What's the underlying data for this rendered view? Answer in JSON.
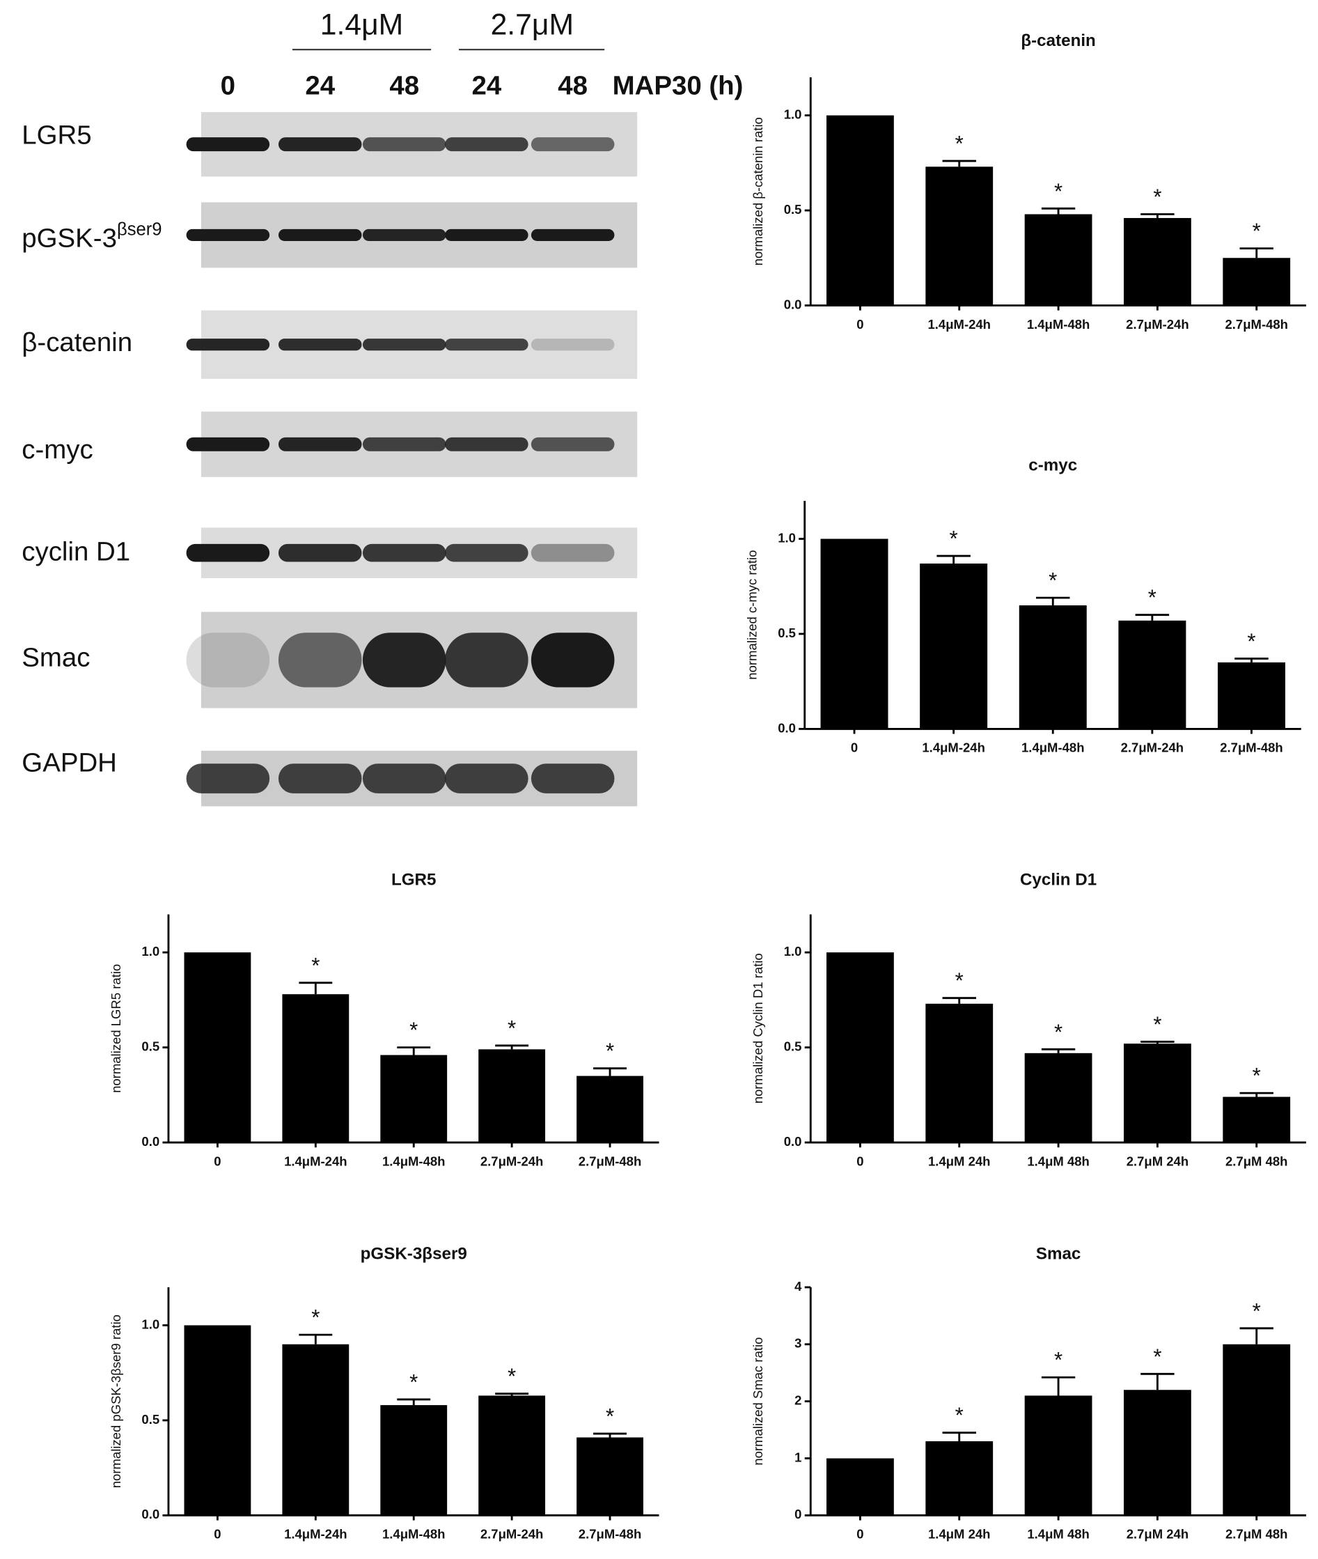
{
  "blot": {
    "concentrations": [
      "1.4μM",
      "2.7μM"
    ],
    "lanes": [
      "0",
      "24",
      "48",
      "24",
      "48"
    ],
    "treatment_label": "MAP30 (h)",
    "proteins": [
      {
        "name": "LGR5"
      },
      {
        "name": "pGSK-3",
        "superscript": "βser9"
      },
      {
        "name": "β-catenin"
      },
      {
        "name": "c-myc"
      },
      {
        "name": "cyclin D1"
      },
      {
        "name": "Smac"
      },
      {
        "name": "GAPDH"
      }
    ]
  },
  "chart_data": [
    {
      "type": "bar",
      "title": "β-catenin",
      "y_label": "normalized β-catenin ratio",
      "categories": [
        "0",
        "1.4μM-24h",
        "1.4μM-48h",
        "2.7μM-24h",
        "2.7μM-48h"
      ],
      "values": [
        1.0,
        0.73,
        0.48,
        0.46,
        0.25
      ],
      "errors": [
        0,
        0.03,
        0.03,
        0.02,
        0.05
      ],
      "significance": [
        null,
        "*",
        "*",
        "*",
        "*"
      ],
      "color": "#000000",
      "ylim": [
        0,
        1.2
      ],
      "yticks": [
        {
          "value": 0,
          "label": "0.0"
        },
        0.5,
        {
          "value": 1,
          "label": "1.0"
        }
      ]
    },
    {
      "type": "bar",
      "title": "c-myc",
      "y_label": "normalized c-myc ratio",
      "categories": [
        "0",
        "1.4μM-24h",
        "1.4μM-48h",
        "2.7μM-24h",
        "2.7μM-48h"
      ],
      "values": [
        1.0,
        0.87,
        0.65,
        0.57,
        0.35
      ],
      "errors": [
        0,
        0.04,
        0.04,
        0.03,
        0.02
      ],
      "significance": [
        null,
        "*",
        "*",
        "*",
        "*"
      ],
      "color": "#000000",
      "ylim": [
        0,
        1.2
      ],
      "yticks": [
        {
          "value": 0,
          "label": "0.0"
        },
        0.5,
        {
          "value": 1,
          "label": "1.0"
        }
      ]
    },
    {
      "type": "bar",
      "title": "LGR5",
      "y_label": "normalized LGR5 ratio",
      "categories": [
        "0",
        "1.4μM-24h",
        "1.4μM-48h",
        "2.7μM-24h",
        "2.7μM-48h"
      ],
      "values": [
        1.0,
        0.78,
        0.46,
        0.49,
        0.35
      ],
      "errors": [
        0,
        0.06,
        0.04,
        0.02,
        0.04
      ],
      "significance": [
        null,
        "*",
        "*",
        "*",
        "*"
      ],
      "color": "#000000",
      "ylim": [
        0,
        1.2
      ],
      "yticks": [
        {
          "value": 0,
          "label": "0.0"
        },
        0.5,
        {
          "value": 1,
          "label": "1.0"
        }
      ]
    },
    {
      "type": "bar",
      "title": "Cyclin D1",
      "y_label": "normalized Cyclin D1 ratio",
      "categories": [
        "0",
        "1.4μM 24h",
        "1.4μM 48h",
        "2.7μM 24h",
        "2.7μM 48h"
      ],
      "values": [
        1.0,
        0.73,
        0.47,
        0.52,
        0.24
      ],
      "errors": [
        0,
        0.03,
        0.02,
        0.01,
        0.02
      ],
      "significance": [
        null,
        "*",
        "*",
        "*",
        "*"
      ],
      "color": "#000000",
      "ylim": [
        0,
        1.2
      ],
      "yticks": [
        {
          "value": 0,
          "label": "0.0"
        },
        0.5,
        {
          "value": 1,
          "label": "1.0"
        }
      ]
    },
    {
      "type": "bar",
      "title": "pGSK-3βser9",
      "y_label": "normalized pGSK-3βser9 ratio",
      "categories": [
        "0",
        "1.4μM-24h",
        "1.4μM-48h",
        "2.7μM-24h",
        "2.7μM-48h"
      ],
      "values": [
        1.0,
        0.9,
        0.58,
        0.63,
        0.41
      ],
      "errors": [
        0,
        0.05,
        0.03,
        0.01,
        0.02
      ],
      "significance": [
        null,
        "*",
        "*",
        "*",
        "*"
      ],
      "color": "#000000",
      "ylim": [
        0,
        1.2
      ],
      "yticks": [
        {
          "value": 0,
          "label": "0.0"
        },
        0.5,
        {
          "value": 1,
          "label": "1.0"
        }
      ]
    },
    {
      "type": "bar",
      "title": "Smac",
      "y_label": "normalized Smac ratio",
      "categories": [
        "0",
        "1.4μM 24h",
        "1.4μM 48h",
        "2.7μM 24h",
        "2.7μM 48h"
      ],
      "values": [
        1.0,
        1.3,
        2.1,
        2.2,
        3.0
      ],
      "errors": [
        0,
        0.15,
        0.32,
        0.28,
        0.28
      ],
      "significance": [
        null,
        "*",
        "*",
        "*",
        "*"
      ],
      "color": "#000000",
      "ylim": [
        0,
        4
      ],
      "yticks": [
        0,
        1,
        2,
        3,
        4
      ]
    }
  ]
}
